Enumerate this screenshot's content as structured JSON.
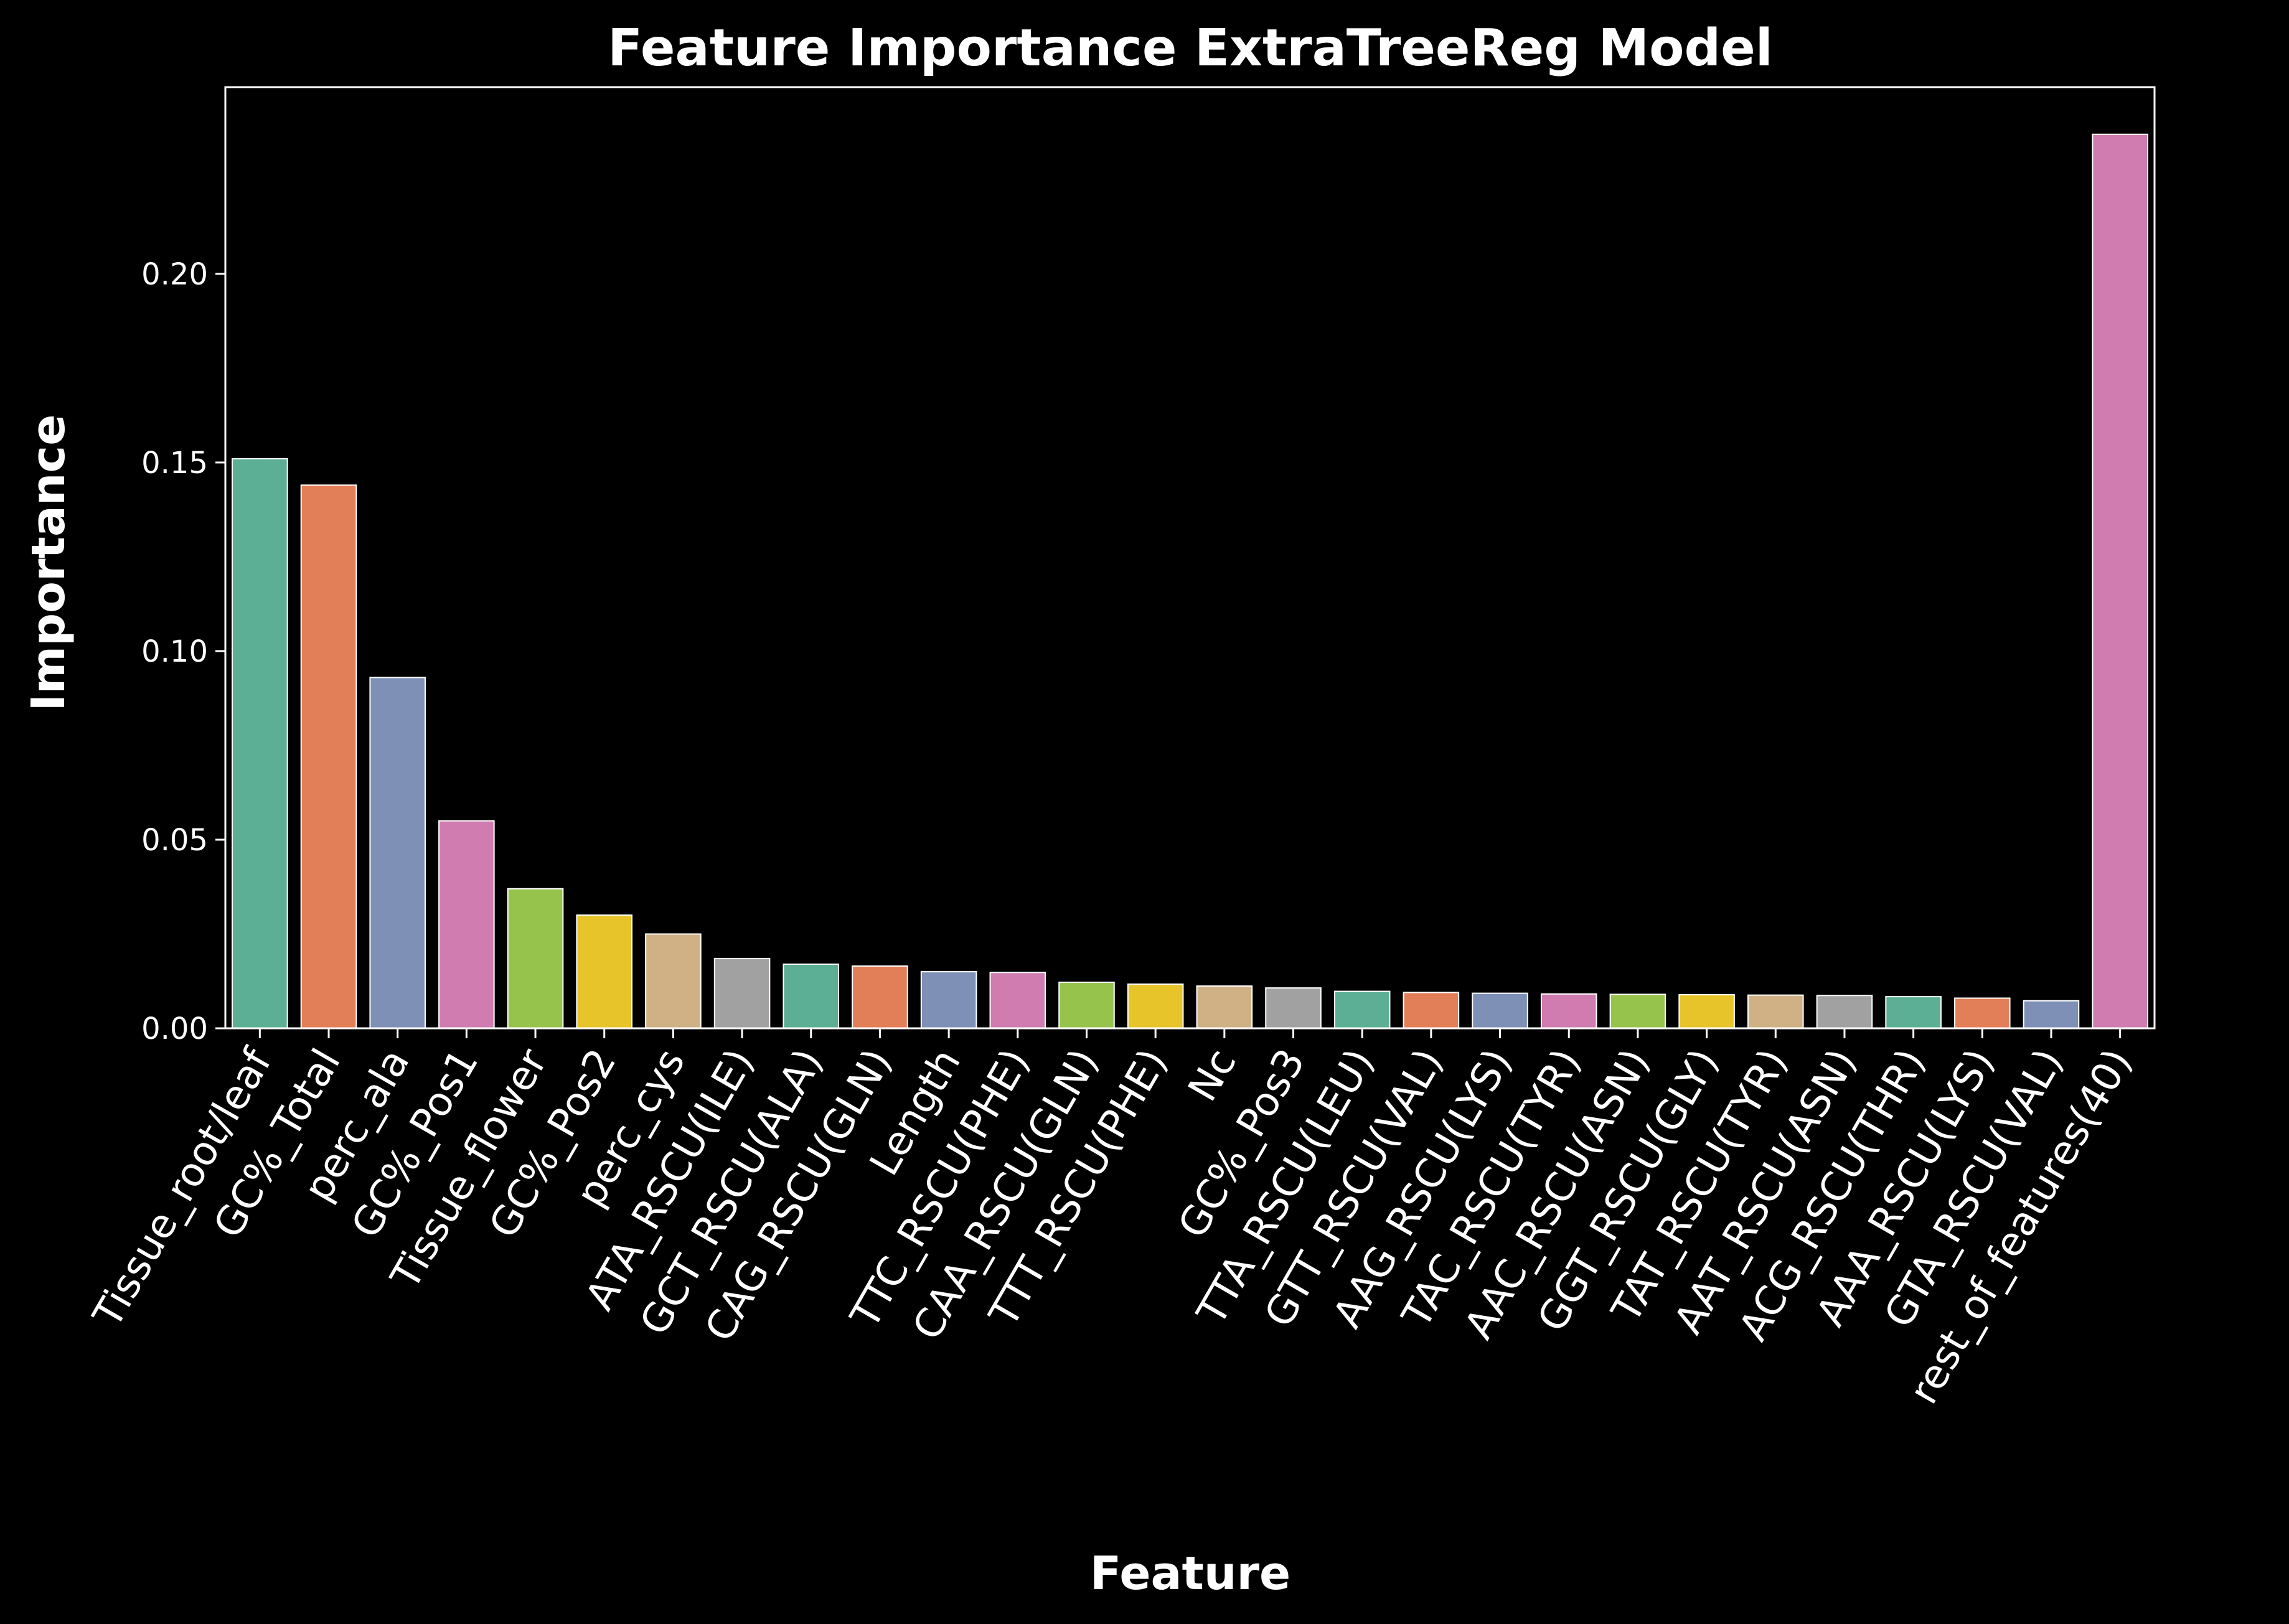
{
  "chart_data": {
    "type": "bar",
    "title": "Feature Importance ExtraTreeReg Model",
    "xlabel": "Feature",
    "ylabel": "Importance",
    "ylim": [
      0,
      0.2495
    ],
    "yticks": [
      "0.00",
      "0.05",
      "0.10",
      "0.15",
      "0.20"
    ],
    "grid": false,
    "legend": "none",
    "categories": [
      "Tissue_root/leaf",
      "GC%_Total",
      "perc_ala",
      "GC%_Pos1",
      "Tissue_flower",
      "GC%_Pos2",
      "perc_cys",
      "ATA_RSCU(ILE)",
      "GCT_RSCU(ALA)",
      "CAG_RSCU(GLN)",
      "Length",
      "TTC_RSCU(PHE)",
      "CAA_RSCU(GLN)",
      "TTT_RSCU(PHE)",
      "Nc",
      "GC%_Pos3",
      "TTA_RSCU(LEU)",
      "GTT_RSCU(VAL)",
      "AAG_RSCU(LYS)",
      "TAC_RSCU(TYR)",
      "AAC_RSCU(ASN)",
      "GGT_RSCU(GLY)",
      "TAT_RSCU(TYR)",
      "AAT_RSCU(ASN)",
      "ACG_RSCU(THR)",
      "AAA_RSCU(LYS)",
      "GTA_RSCU(VAL)",
      "rest_of_features(40)"
    ],
    "values": [
      0.151,
      0.144,
      0.093,
      0.055,
      0.037,
      0.03,
      0.025,
      0.0185,
      0.017,
      0.0165,
      0.015,
      0.0148,
      0.0122,
      0.0117,
      0.0112,
      0.0107,
      0.0098,
      0.0095,
      0.0093,
      0.0091,
      0.009,
      0.0089,
      0.0088,
      0.0087,
      0.0084,
      0.008,
      0.0073,
      0.237
    ],
    "colors": [
      "#66c2a5",
      "#fc8d62",
      "#8da0cb",
      "#e78ac3",
      "#a6d854",
      "#ffd92f",
      "#e5c494",
      "#b3b3b3"
    ],
    "bar_opacity": 0.9,
    "background": "#000000",
    "foreground": "#ffffff"
  }
}
